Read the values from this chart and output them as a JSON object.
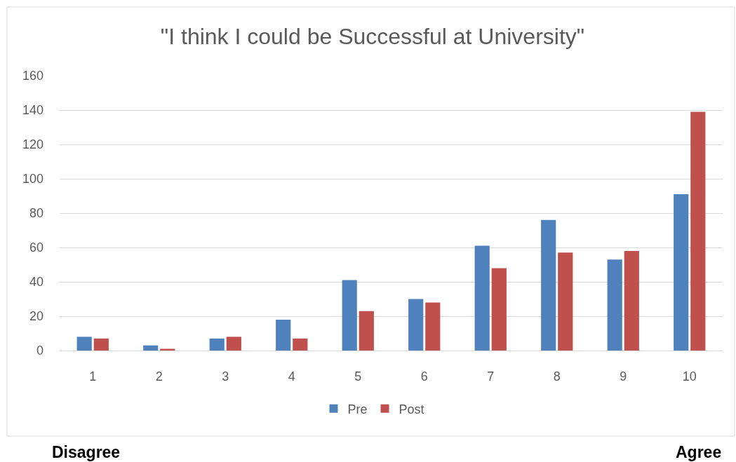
{
  "chart_data": {
    "type": "bar",
    "title": "\"I think I could be Successful at University\"",
    "categories": [
      "1",
      "2",
      "3",
      "4",
      "5",
      "6",
      "7",
      "8",
      "9",
      "10"
    ],
    "series": [
      {
        "name": "Pre",
        "color": "#4f81bd",
        "values": [
          8,
          3,
          7,
          18,
          41,
          30,
          61,
          76,
          53,
          91
        ]
      },
      {
        "name": "Post",
        "color": "#c0504d",
        "values": [
          7,
          1,
          8,
          7,
          23,
          28,
          48,
          57,
          58,
          139
        ]
      }
    ],
    "ylim": [
      0,
      160
    ],
    "yticks": [
      0,
      20,
      40,
      60,
      80,
      100,
      120,
      140,
      160
    ],
    "grid": "y",
    "legend": "bottom",
    "annotations": [
      "Disagree",
      "Agree"
    ]
  }
}
